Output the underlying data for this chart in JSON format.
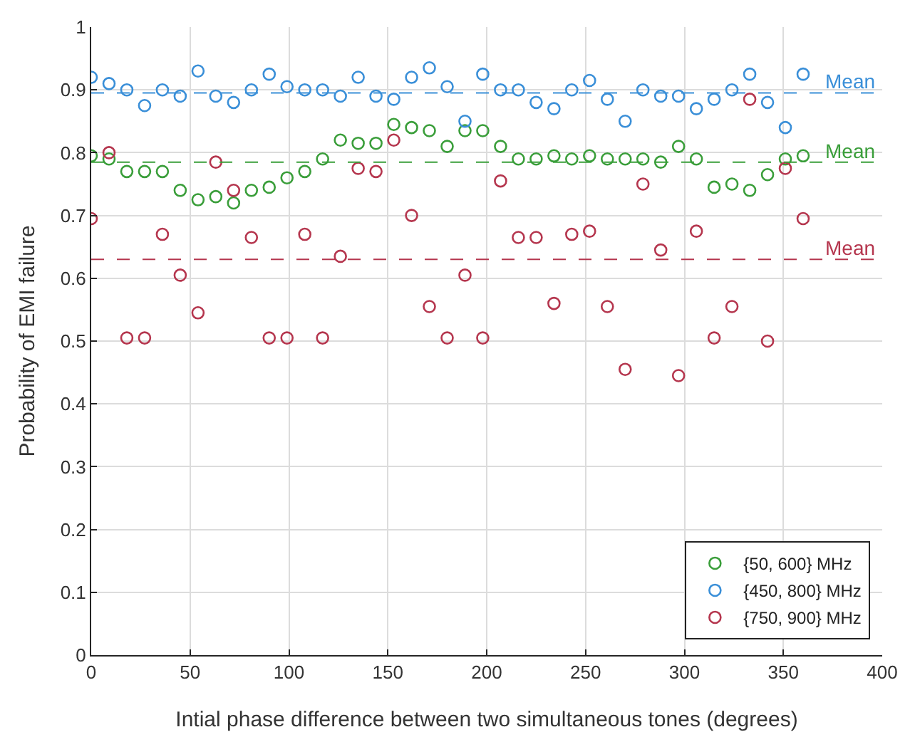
{
  "chart_data": {
    "type": "scatter",
    "xlabel": "Intial phase difference between two simultaneous tones (degrees)",
    "ylabel": "Probability of EMI failure",
    "x": [
      0,
      9,
      18,
      27,
      36,
      45,
      54,
      63,
      72,
      81,
      90,
      99,
      108,
      117,
      126,
      135,
      144,
      153,
      162,
      171,
      180,
      189,
      198,
      207,
      216,
      225,
      234,
      243,
      252,
      261,
      270,
      279,
      288,
      297,
      306,
      315,
      324,
      333,
      342,
      351,
      360
    ],
    "series": [
      {
        "name": "{50, 600} MHz",
        "color": "#3a9e3a",
        "values": [
          0.795,
          0.79,
          0.77,
          0.77,
          0.77,
          0.74,
          0.725,
          0.73,
          0.72,
          0.74,
          0.745,
          0.76,
          0.77,
          0.79,
          0.82,
          0.815,
          0.815,
          0.845,
          0.84,
          0.835,
          0.81,
          0.835,
          0.835,
          0.81,
          0.79,
          0.79,
          0.795,
          0.79,
          0.795,
          0.79,
          0.79,
          0.79,
          0.785,
          0.81,
          0.79,
          0.745,
          0.75,
          0.74,
          0.765,
          0.79,
          0.795
        ]
      },
      {
        "name": "{450, 800} MHz",
        "color": "#3a8fd8",
        "values": [
          0.92,
          0.91,
          0.9,
          0.875,
          0.9,
          0.89,
          0.93,
          0.89,
          0.88,
          0.9,
          0.925,
          0.905,
          0.9,
          0.9,
          0.89,
          0.92,
          0.89,
          0.885,
          0.92,
          0.935,
          0.905,
          0.85,
          0.925,
          0.9,
          0.9,
          0.88,
          0.87,
          0.9,
          0.915,
          0.885,
          0.85,
          0.9,
          0.89,
          0.89,
          0.87,
          0.885,
          0.9,
          0.925,
          0.88,
          0.84,
          0.925
        ]
      },
      {
        "name": "{750, 900} MHz",
        "color": "#b5364e",
        "values": [
          0.695,
          0.8,
          0.505,
          0.505,
          0.67,
          0.605,
          0.545,
          0.785,
          0.74,
          0.665,
          0.505,
          0.505,
          0.67,
          0.505,
          0.635,
          0.775,
          0.77,
          0.82,
          0.7,
          0.555,
          0.505,
          0.605,
          0.505,
          0.755,
          0.665,
          0.665,
          0.56,
          0.67,
          0.675,
          0.555,
          0.455,
          0.75,
          0.645,
          0.445,
          0.675,
          0.505,
          0.555,
          0.885,
          0.5,
          0.775,
          0.695
        ]
      }
    ],
    "ref_lines": [
      {
        "axis": "y",
        "value": 0.785,
        "label": "Mean",
        "color": "#3a9e3a",
        "line_style": "dashed"
      },
      {
        "axis": "y",
        "value": 0.895,
        "label": "Mean",
        "color": "#3a8fd8",
        "line_style": "dashed"
      },
      {
        "axis": "y",
        "value": 0.63,
        "label": "Mean",
        "color": "#b5364e",
        "line_style": "dashed"
      }
    ],
    "xlim": [
      0,
      400
    ],
    "xticks": [
      0,
      50,
      100,
      150,
      200,
      250,
      300,
      350,
      400
    ],
    "ylim": [
      0,
      1
    ],
    "yticks": [
      0,
      0.1,
      0.2,
      0.3,
      0.4,
      0.5,
      0.6,
      0.7,
      0.8,
      0.9,
      1
    ],
    "grid": true,
    "legend": "bottom right",
    "marker": "circle"
  }
}
